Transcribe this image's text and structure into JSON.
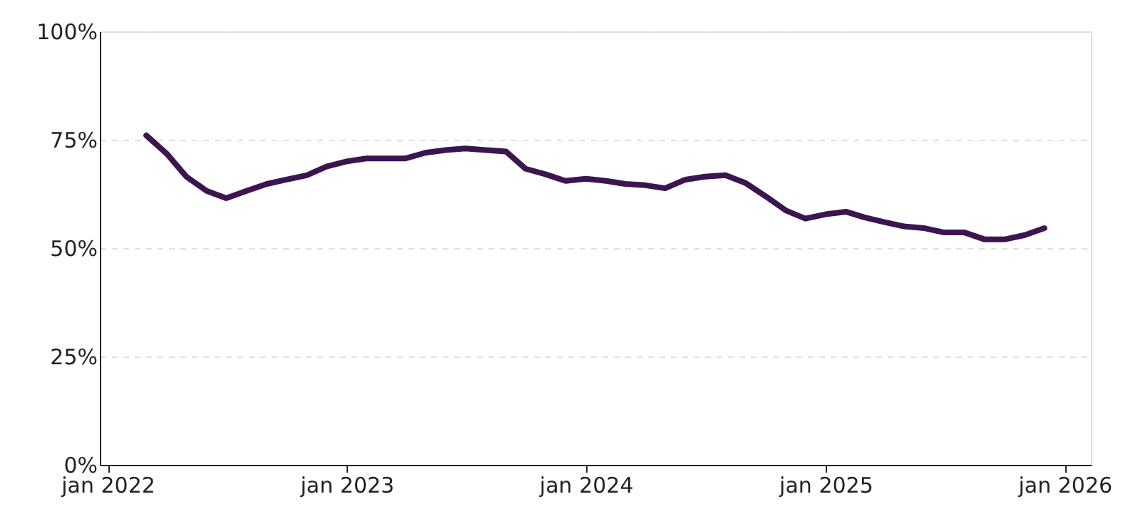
{
  "chart_data": {
    "type": "line",
    "x": [
      "2022-03",
      "2022-04",
      "2022-05",
      "2022-06",
      "2022-07",
      "2022-08",
      "2022-09",
      "2022-10",
      "2022-11",
      "2022-12",
      "2023-01",
      "2023-02",
      "2023-03",
      "2023-04",
      "2023-05",
      "2023-06",
      "2023-07",
      "2023-08",
      "2023-09",
      "2023-10",
      "2023-11",
      "2023-12",
      "2024-01",
      "2024-02",
      "2024-03",
      "2024-04",
      "2024-05",
      "2024-06",
      "2024-07",
      "2024-08",
      "2024-09",
      "2024-10",
      "2024-11",
      "2024-12",
      "2025-01",
      "2025-02",
      "2025-03",
      "2025-04",
      "2025-05",
      "2025-06",
      "2025-07",
      "2025-08",
      "2025-09",
      "2025-10",
      "2025-11",
      "2025-12"
    ],
    "series": [
      {
        "color": "#3b1450",
        "values": [
          76,
          71.8,
          66.5,
          63.2,
          61.5,
          63.2,
          64.8,
          65.8,
          66.8,
          68.8,
          70,
          70.7,
          70.7,
          70.7,
          72,
          72.6,
          73,
          72.6,
          72.3,
          68.3,
          67,
          65.5,
          66,
          65.5,
          64.8,
          64.5,
          63.8,
          65.8,
          66.5,
          66.8,
          65,
          62,
          58.7,
          56.8,
          57.8,
          58.4,
          57.1,
          56,
          55,
          54.6,
          53.6,
          53.6,
          52,
          52,
          53,
          54.6
        ]
      }
    ],
    "xlim": [
      "2021-12-20",
      "2026-02-10"
    ],
    "xticks": [
      {
        "value": "2022-01",
        "label": "jan 2022"
      },
      {
        "value": "2023-01",
        "label": "jan 2023"
      },
      {
        "value": "2024-01",
        "label": "jan 2024"
      },
      {
        "value": "2025-01",
        "label": "jan 2025"
      },
      {
        "value": "2026-01",
        "label": "jan 2026"
      }
    ],
    "ylim": [
      0,
      100
    ],
    "yticks": [
      {
        "value": 0,
        "label": "0%"
      },
      {
        "value": 25,
        "label": "25%"
      },
      {
        "value": 50,
        "label": "50%"
      },
      {
        "value": 75,
        "label": "75%"
      },
      {
        "value": 100,
        "label": "100%"
      }
    ],
    "grid": "y",
    "marker": "none",
    "line_style": "solid"
  }
}
